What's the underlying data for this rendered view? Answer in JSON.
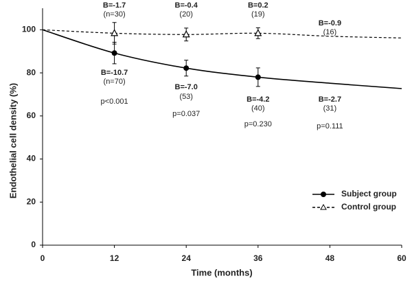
{
  "chart_data": {
    "type": "line",
    "xlabel": "Time (months)",
    "ylabel": "Endothelial cell density (%)",
    "xlim": [
      0,
      60
    ],
    "xticks": [
      0,
      12,
      24,
      36,
      48,
      60
    ],
    "ylim": [
      0,
      110
    ],
    "yticks": [
      0,
      20,
      40,
      60,
      80,
      100
    ],
    "grid": false,
    "legend": "lower right",
    "series": [
      {
        "name": "Subject group",
        "color": "#000000",
        "dash": "solid",
        "marker": "circle",
        "x": [
          0,
          12,
          24,
          36,
          48,
          60
        ],
        "values": [
          100,
          89.2,
          82.2,
          78,
          75.2,
          72.7
        ],
        "errors": [
          null,
          5,
          3.7,
          4.3,
          null,
          null
        ]
      },
      {
        "name": "Control group",
        "color": "#000000",
        "dash": "dashed",
        "marker": "triangle",
        "x": [
          0,
          12,
          24,
          36,
          48,
          60
        ],
        "values": [
          100,
          98.4,
          97.8,
          98.4,
          97,
          96.2
        ],
        "errors": [
          null,
          5,
          3,
          2.5,
          null,
          null
        ]
      }
    ],
    "annotations": [
      {
        "x": 12,
        "control": [
          "B=-1.7",
          "(n=30)"
        ],
        "subject": [
          "B=-10.7",
          "(n=70)"
        ],
        "p": "p<0.001"
      },
      {
        "x": 24,
        "control": [
          "B=-0.4",
          "(20)"
        ],
        "subject": [
          "B=-7.0",
          "(53)"
        ],
        "p": "p=0.037"
      },
      {
        "x": 36,
        "control": [
          "B=0.2",
          "(19)"
        ],
        "subject": [
          "B=-4.2",
          "(40)"
        ],
        "p": "p=0.230"
      },
      {
        "x": 48,
        "control": [
          "B=-0.9",
          "(16)"
        ],
        "subject": [
          "B=-2.7",
          "(31)"
        ],
        "p": "p=0.111"
      }
    ]
  }
}
